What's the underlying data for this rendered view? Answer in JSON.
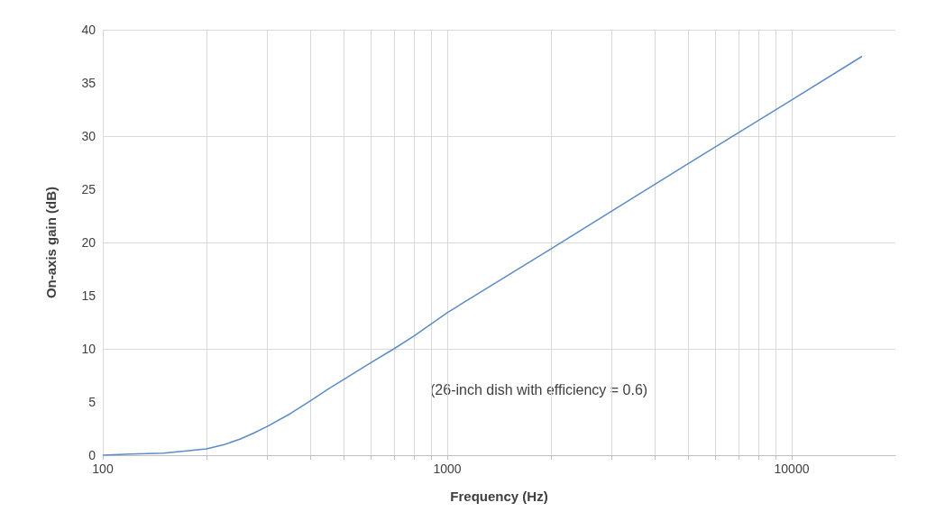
{
  "chart_data": {
    "type": "line",
    "xlabel": "Frequency (Hz)",
    "ylabel": "On-axis gain (dB)",
    "x": [
      100,
      120,
      150,
      175,
      200,
      225,
      250,
      275,
      300,
      350,
      400,
      450,
      500,
      600,
      700,
      800,
      1000,
      2000,
      5000,
      10000,
      16000
    ],
    "series": [
      {
        "color": "#5b8cc6",
        "values": [
          0,
          0.1,
          0.2,
          0.4,
          0.6,
          1,
          1.5,
          2.1,
          2.7,
          3.9,
          5.1,
          6.2,
          7.1,
          8.7,
          10,
          11.2,
          13.4,
          19.4,
          27.4,
          33.4,
          37.5
        ]
      }
    ],
    "xlim": [
      100,
      20000
    ],
    "ylim": [
      0,
      40
    ],
    "xticks": [
      100,
      {
        "value": 200,
        "label": null
      },
      {
        "value": 300,
        "label": null
      },
      {
        "value": 400,
        "label": null
      },
      {
        "value": 500,
        "label": null
      },
      {
        "value": 600,
        "label": null
      },
      {
        "value": 700,
        "label": null
      },
      {
        "value": 800,
        "label": null
      },
      {
        "value": 900,
        "label": null
      },
      1000,
      {
        "value": 2000,
        "label": null
      },
      {
        "value": 3000,
        "label": null
      },
      {
        "value": 4000,
        "label": null
      },
      {
        "value": 5000,
        "label": null
      },
      {
        "value": 6000,
        "label": null
      },
      {
        "value": 7000,
        "label": null
      },
      {
        "value": 8000,
        "label": null
      },
      {
        "value": 9000,
        "label": null
      },
      10000
    ],
    "yticks": [
      0,
      5,
      10,
      15,
      20,
      25,
      30,
      35,
      40
    ],
    "log": "x",
    "grid": true,
    "marker": "none",
    "line_style": "solid",
    "annotations": [
      "(26-inch dish with efficiency = 0.6)"
    ]
  }
}
